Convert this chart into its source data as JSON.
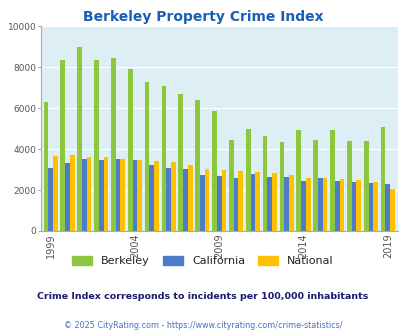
{
  "title": "Berkeley Property Crime Index",
  "title_color": "#1a5eb8",
  "subtitle": "Crime Index corresponds to incidents per 100,000 inhabitants",
  "footer": "© 2025 CityRating.com - https://www.cityrating.com/crime-statistics/",
  "years": [
    1999,
    2000,
    2001,
    2002,
    2003,
    2004,
    2005,
    2006,
    2007,
    2008,
    2009,
    2010,
    2011,
    2012,
    2013,
    2014,
    2015,
    2016,
    2017,
    2018,
    2019
  ],
  "berkeley": [
    6300,
    8350,
    9000,
    8350,
    8450,
    7900,
    7300,
    7100,
    6700,
    6400,
    5850,
    4450,
    5000,
    4650,
    4350,
    4950,
    4450,
    4950,
    4400,
    4400,
    5100
  ],
  "california": [
    3100,
    3300,
    3500,
    3450,
    3500,
    3450,
    3250,
    3100,
    3050,
    2750,
    2700,
    2600,
    2800,
    2650,
    2650,
    2450,
    2600,
    2450,
    2400,
    2350,
    2300
  ],
  "national": [
    3650,
    3700,
    3600,
    3600,
    3500,
    3450,
    3400,
    3350,
    3250,
    3050,
    3000,
    2950,
    2900,
    2850,
    2750,
    2600,
    2600,
    2550,
    2500,
    2400,
    2050
  ],
  "berkeley_color": "#8dc63f",
  "california_color": "#4d7cc9",
  "national_color": "#ffc000",
  "bg_color": "#ddeef5",
  "ylim": [
    0,
    10000
  ],
  "yticks": [
    0,
    2000,
    4000,
    6000,
    8000,
    10000
  ],
  "xtick_years": [
    1999,
    2004,
    2009,
    2014,
    2019
  ],
  "legend_labels": [
    "Berkeley",
    "California",
    "National"
  ],
  "subtitle_color": "#1a1a6e",
  "footer_color": "#4472c4"
}
